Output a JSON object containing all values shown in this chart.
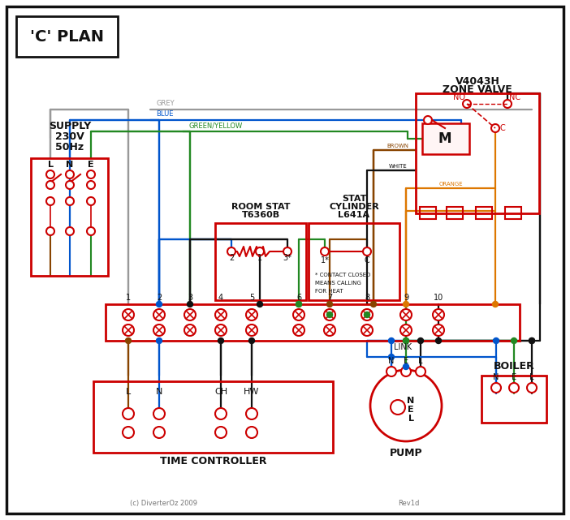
{
  "title": "'C' PLAN",
  "bg": "#ffffff",
  "red": "#cc0000",
  "blue": "#0055cc",
  "green": "#228822",
  "brown": "#884400",
  "grey": "#999999",
  "orange": "#dd7700",
  "black": "#111111",
  "copyright": "(c) DiverterOz 2009",
  "rev": "Rev1d",
  "supply_labels": [
    "SUPPLY",
    "230V",
    "50Hz"
  ],
  "lne": [
    "L",
    "N",
    "E"
  ],
  "time_ctrl_label": "TIME CONTROLLER",
  "tc_terminals": [
    "L",
    "N",
    "CH",
    "HW"
  ],
  "room_stat_labels": [
    "T6360B",
    "ROOM STAT"
  ],
  "cyl_stat_labels": [
    "L641A",
    "CYLINDER",
    "STAT"
  ],
  "cyl_note": [
    "* CONTACT CLOSED",
    "MEANS CALLING",
    "FOR HEAT"
  ],
  "zone_valve_labels": [
    "V4043H",
    "ZONE VALVE"
  ],
  "zv_contacts": [
    "NO",
    "NC",
    "C"
  ],
  "motor": "M",
  "pump_label": "PUMP",
  "boiler_label": "BOILER",
  "pmp_boi_terminals": [
    "N",
    "E",
    "L"
  ],
  "link_label": "LINK",
  "wire_labels": [
    "GREY",
    "BLUE",
    "GREEN/YELLOW",
    "BROWN",
    "WHITE",
    "ORANGE"
  ],
  "num_terminals": 10
}
